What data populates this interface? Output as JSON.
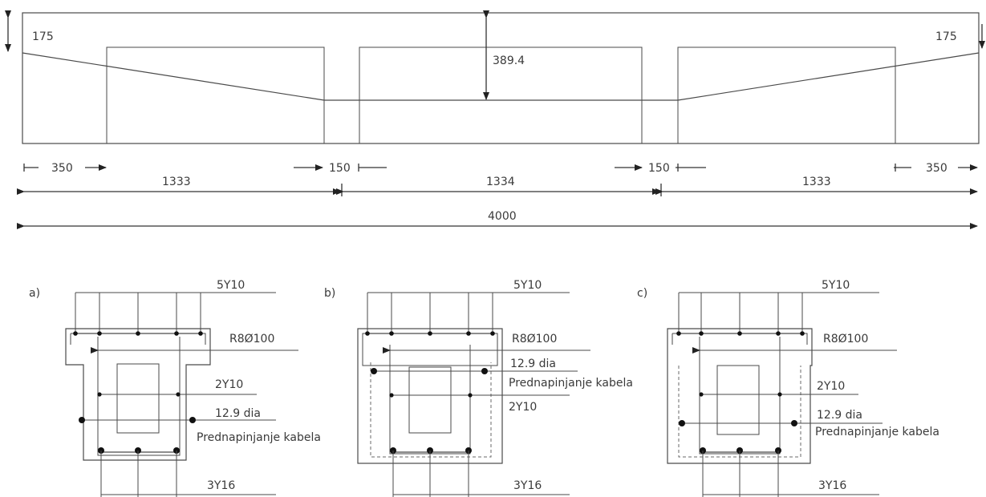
{
  "elevation": {
    "end_depth_left": "175",
    "end_depth_right": "175",
    "mid_depth": "389.4",
    "dims_row1": [
      "350",
      "150",
      "150",
      "350"
    ],
    "dims_row2": [
      "1333",
      "1334",
      "1333"
    ],
    "total": "4000"
  },
  "sections": [
    {
      "tag": "a)",
      "top_bars": "5Y10",
      "stirrup": "R8Ø100",
      "side_bars": "2Y10",
      "cable_size": "12.9 dia",
      "cable_label": "Prednapinjanje kabela",
      "bottom_bars": "3Y16"
    },
    {
      "tag": "b)",
      "top_bars": "5Y10",
      "stirrup": "R8Ø100",
      "cable_size": "12.9 dia",
      "cable_label": "Prednapinjanje kabela",
      "side_bars": "2Y10",
      "bottom_bars": "3Y16"
    },
    {
      "tag": "c)",
      "top_bars": "5Y10",
      "stirrup": "R8Ø100",
      "side_bars": "2Y10",
      "cable_size": "12.9 dia",
      "cable_label": "Prednapinjanje kabela",
      "bottom_bars": "3Y16"
    }
  ]
}
